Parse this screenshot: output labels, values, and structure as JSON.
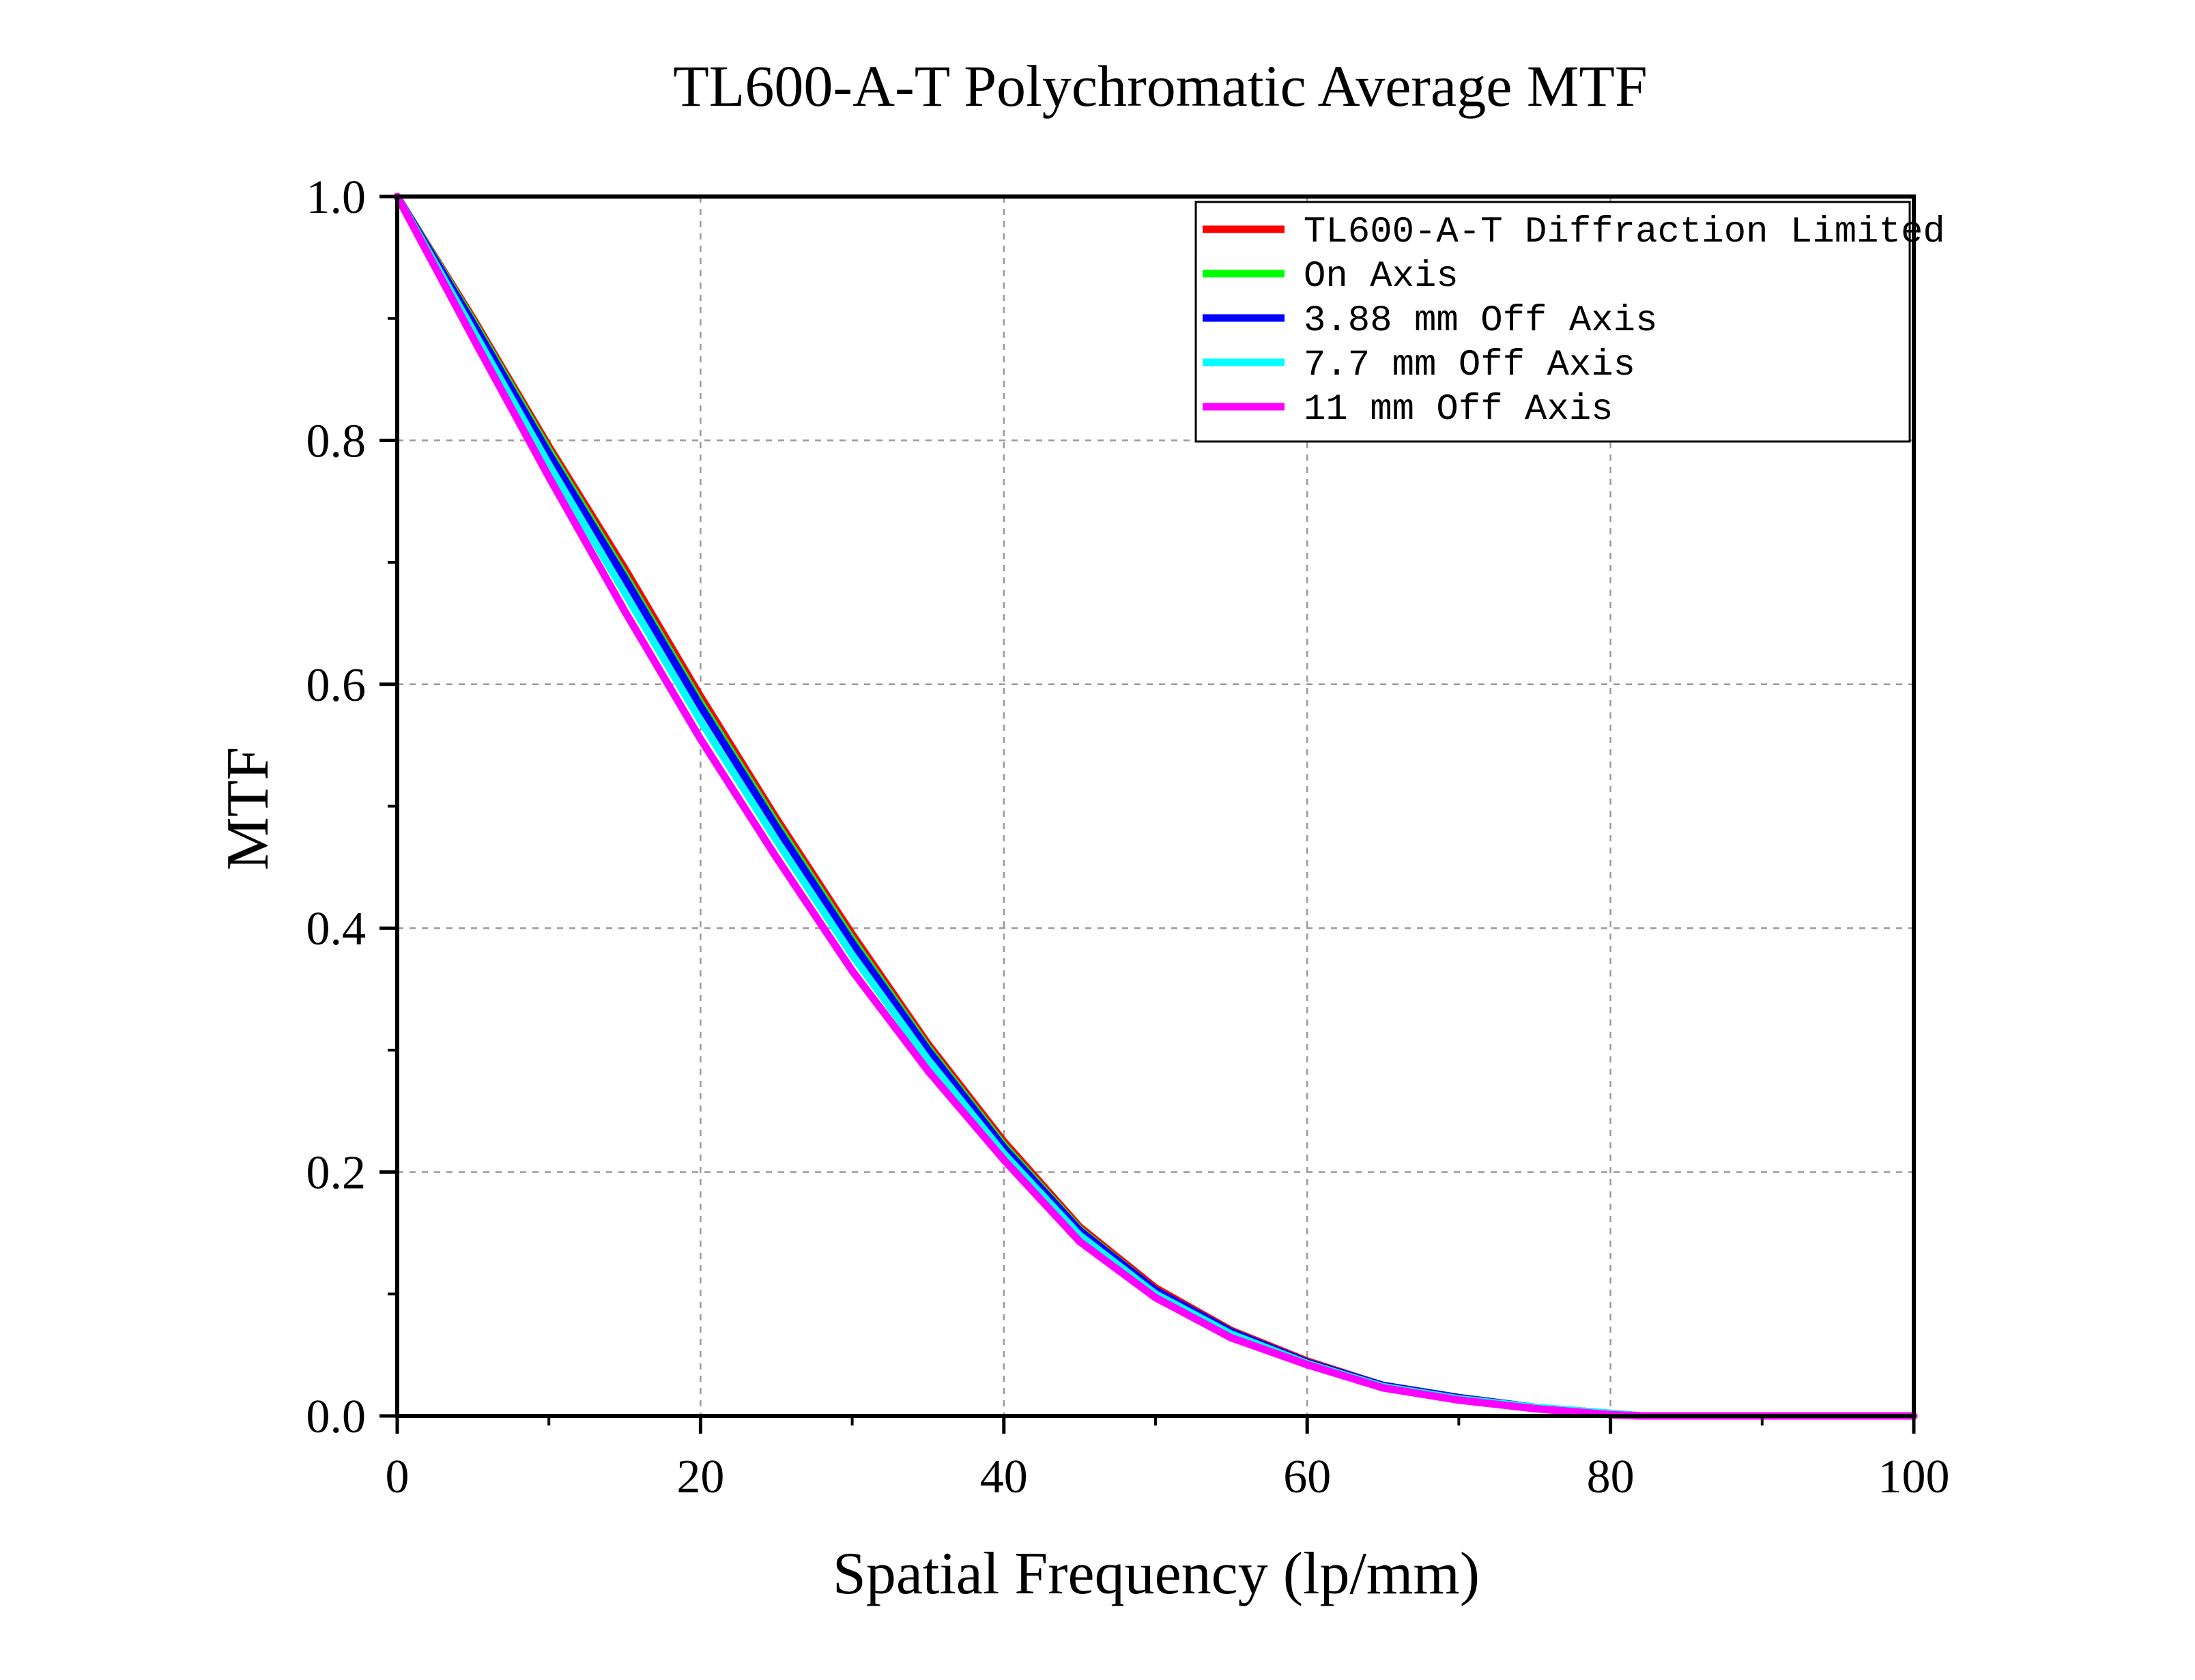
{
  "chart_data": {
    "type": "line",
    "title": "TL600-A-T Polychromatic Average MTF",
    "xlabel": "Spatial Frequency (lp/mm)",
    "ylabel": "MTF",
    "xlim": [
      0,
      100
    ],
    "ylim": [
      0,
      1.0
    ],
    "x_ticks": [
      0,
      20,
      40,
      60,
      80,
      100
    ],
    "x_tick_labels": [
      "0",
      "20",
      "40",
      "60",
      "80",
      "100"
    ],
    "y_ticks": [
      0,
      0.2,
      0.4,
      0.6,
      0.8,
      1.0
    ],
    "y_tick_labels": [
      "0.0",
      "0.2",
      "0.4",
      "0.6",
      "0.8",
      "1.0"
    ],
    "grid": true,
    "legend_position": "top-right",
    "x": [
      0,
      5,
      10,
      15,
      20,
      25,
      30,
      35,
      40,
      45,
      50,
      55,
      60,
      65,
      70,
      75,
      80,
      82,
      85,
      90,
      95,
      100
    ],
    "series": [
      {
        "name": "TL600-A-T Diffraction Limited",
        "color": "#ff0000",
        "values": [
          1.0,
          0.9,
          0.795,
          0.695,
          0.59,
          0.49,
          0.395,
          0.305,
          0.225,
          0.155,
          0.105,
          0.07,
          0.045,
          0.025,
          0.015,
          0.007,
          0.002,
          0.0,
          0.0,
          0.0,
          0.0,
          0.0
        ]
      },
      {
        "name": "On Axis",
        "color": "#00ff00",
        "values": [
          1.0,
          0.898,
          0.792,
          0.69,
          0.585,
          0.486,
          0.391,
          0.302,
          0.222,
          0.153,
          0.103,
          0.069,
          0.044,
          0.025,
          0.015,
          0.007,
          0.002,
          0.0,
          0.0,
          0.0,
          0.0,
          0.0
        ]
      },
      {
        "name": "3.88 mm Off Axis",
        "color": "#0000ff",
        "values": [
          1.0,
          0.896,
          0.789,
          0.687,
          0.582,
          0.483,
          0.388,
          0.3,
          0.22,
          0.152,
          0.103,
          0.069,
          0.044,
          0.025,
          0.015,
          0.007,
          0.002,
          0.0,
          0.0,
          0.0,
          0.0,
          0.0
        ]
      },
      {
        "name": "7.7 mm Off Axis",
        "color": "#00ffff",
        "values": [
          1.0,
          0.89,
          0.78,
          0.675,
          0.57,
          0.472,
          0.378,
          0.292,
          0.215,
          0.148,
          0.1,
          0.067,
          0.043,
          0.024,
          0.014,
          0.007,
          0.002,
          0.0,
          0.0,
          0.0,
          0.0,
          0.0
        ]
      },
      {
        "name": "11 mm Off Axis",
        "color": "#ff00ff",
        "values": [
          1.0,
          0.884,
          0.77,
          0.66,
          0.555,
          0.458,
          0.365,
          0.283,
          0.21,
          0.143,
          0.097,
          0.064,
          0.042,
          0.023,
          0.013,
          0.006,
          0.001,
          0.0,
          0.0,
          0.0,
          0.0,
          0.0
        ]
      }
    ]
  }
}
